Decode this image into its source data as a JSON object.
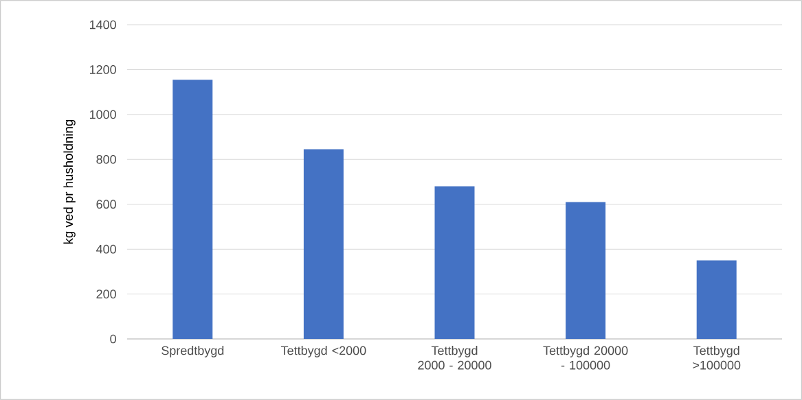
{
  "chart_data": {
    "type": "bar",
    "ylabel": "kg ved pr husholdning",
    "categories": [
      "Spredtbygd",
      "Tettbygd <2000",
      "Tettbygd 2000 - 20000",
      "Tettbygd 20000 - 100000",
      "Tettbygd >100000"
    ],
    "values": [
      1155,
      845,
      680,
      610,
      350
    ],
    "color": "#4472c4",
    "ylim": [
      0,
      1400
    ],
    "yticks": [
      0,
      200,
      400,
      600,
      800,
      1000,
      1200,
      1400
    ],
    "grid": "y"
  }
}
